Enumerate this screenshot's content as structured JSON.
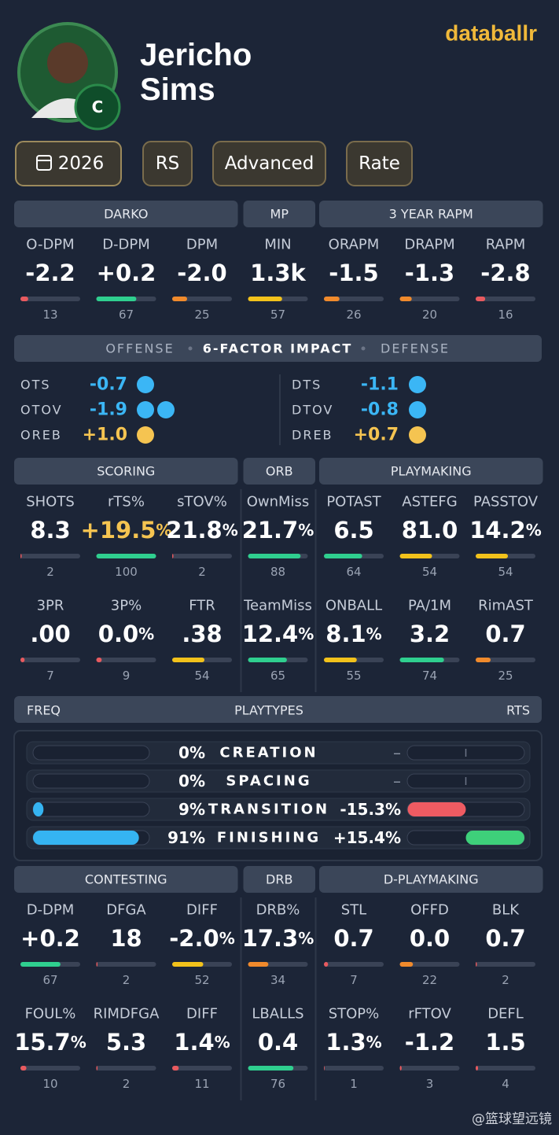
{
  "header": {
    "brand": "databallr",
    "first_name": "Jericho",
    "last_name": "Sims",
    "position": "C"
  },
  "filters": [
    "2026",
    "RS",
    "Advanced",
    "Rate"
  ],
  "blocks": [
    {
      "kind": "stats",
      "groups": [
        {
          "title": "DARKO",
          "span": 3
        },
        {
          "title": "MP",
          "span": 1
        },
        {
          "title": "3 YEAR RAPM",
          "span": 3
        }
      ],
      "rows": [
        [
          {
            "label": "O-DPM",
            "value": "-2.2",
            "pct": 13
          },
          {
            "label": "D-DPM",
            "value": "+0.2",
            "pct": 67
          },
          {
            "label": "DPM",
            "value": "-2.0",
            "pct": 25
          },
          {
            "label": "MIN",
            "value": "1.3k",
            "pct": 57
          },
          {
            "label": "ORAPM",
            "value": "-1.5",
            "pct": 26
          },
          {
            "label": "DRAPM",
            "value": "-1.3",
            "pct": 20
          },
          {
            "label": "RAPM",
            "value": "-2.8",
            "pct": 16
          }
        ]
      ]
    },
    {
      "kind": "factors",
      "titles": [
        "OFFENSE",
        "6-FACTOR IMPACT",
        "DEFENSE"
      ],
      "sides": [
        [
          {
            "label": "OTS",
            "value": "-0.7",
            "dots": 1,
            "color": "#3bb6f5"
          },
          {
            "label": "OTOV",
            "value": "-1.9",
            "dots": 2,
            "color": "#3bb6f5"
          },
          {
            "label": "OREB",
            "value": "+1.0",
            "dots": 1,
            "color": "#f5c451"
          }
        ],
        [
          {
            "label": "DTS",
            "value": "-1.1",
            "dots": 1,
            "color": "#3bb6f5"
          },
          {
            "label": "DTOV",
            "value": "-0.8",
            "dots": 1,
            "color": "#3bb6f5"
          },
          {
            "label": "DREB",
            "value": "+0.7",
            "dots": 1,
            "color": "#f5c451"
          }
        ]
      ]
    },
    {
      "kind": "stats",
      "groups": [
        {
          "title": "SCORING",
          "span": 3
        },
        {
          "title": "ORB",
          "span": 1
        },
        {
          "title": "PLAYMAKING",
          "span": 3
        }
      ],
      "rows": [
        [
          {
            "label": "SHOTS",
            "value": "8.3",
            "pct": 2
          },
          {
            "label": "rTS%",
            "value": "+19.5%",
            "pct": 100,
            "color": "#f5c451"
          },
          {
            "label": "sTOV%",
            "value": "21.8%",
            "pct": 2
          },
          {
            "label": "OwnMiss",
            "value": "21.7%",
            "pct": 88
          },
          {
            "label": "POTAST",
            "value": "6.5",
            "pct": 64
          },
          {
            "label": "ASTEFG",
            "value": "81.0",
            "pct": 54
          },
          {
            "label": "PASSTOV",
            "value": "14.2%",
            "pct": 54
          }
        ],
        [
          {
            "label": "3PR",
            "value": ".00",
            "pct": 7
          },
          {
            "label": "3P%",
            "value": "0.0%",
            "pct": 9
          },
          {
            "label": "FTR",
            "value": ".38",
            "pct": 54
          },
          {
            "label": "TeamMiss",
            "value": "12.4%",
            "pct": 65
          },
          {
            "label": "ONBALL",
            "value": "8.1%",
            "pct": 55
          },
          {
            "label": "PA/1M",
            "value": "3.2",
            "pct": 74
          },
          {
            "label": "RimAST",
            "value": "0.7",
            "pct": 25
          }
        ]
      ]
    },
    {
      "kind": "playtypes",
      "titles": [
        "FREQ",
        "PLAYTYPES",
        "RTS"
      ],
      "freq_range": [
        0,
        100
      ],
      "rts_range": [
        -15.4,
        15.4
      ],
      "rows": [
        {
          "freq": 0,
          "freq_label": "0%",
          "name": "CREATION",
          "rts": null,
          "rts_label": "–"
        },
        {
          "freq": 0,
          "freq_label": "0%",
          "name": "SPACING",
          "rts": null,
          "rts_label": "–"
        },
        {
          "freq": 9,
          "freq_label": "9%",
          "name": "TRANSITION",
          "rts": -15.3,
          "rts_label": "-15.3%"
        },
        {
          "freq": 91,
          "freq_label": "91%",
          "name": "FINISHING",
          "rts": 15.4,
          "rts_label": "+15.4%"
        }
      ]
    },
    {
      "kind": "stats",
      "groups": [
        {
          "title": "CONTESTING",
          "span": 3
        },
        {
          "title": "DRB",
          "span": 1
        },
        {
          "title": "D-PLAYMAKING",
          "span": 3
        }
      ],
      "rows": [
        [
          {
            "label": "D-DPM",
            "value": "+0.2",
            "pct": 67
          },
          {
            "label": "DFGA",
            "value": "18",
            "pct": 2
          },
          {
            "label": "DIFF",
            "value": "-2.0%",
            "pct": 52
          },
          {
            "label": "DRB%",
            "value": "17.3%",
            "pct": 34
          },
          {
            "label": "STL",
            "value": "0.7",
            "pct": 7
          },
          {
            "label": "OFFD",
            "value": "0.0",
            "pct": 22
          },
          {
            "label": "BLK",
            "value": "0.7",
            "pct": 2
          }
        ],
        [
          {
            "label": "FOUL%",
            "value": "15.7%",
            "pct": 10
          },
          {
            "label": "RIMDFGA",
            "value": "5.3",
            "pct": 2
          },
          {
            "label": "DIFF",
            "value": "1.4%",
            "pct": 11
          },
          {
            "label": "LBALLS",
            "value": "0.4",
            "pct": 76
          },
          {
            "label": "STOP%",
            "value": "1.3%",
            "pct": 1
          },
          {
            "label": "rFTOV",
            "value": "-1.2",
            "pct": 3
          },
          {
            "label": "DEFL",
            "value": "1.5",
            "pct": 4
          }
        ]
      ]
    }
  ],
  "watermark": "@篮球望远镜"
}
